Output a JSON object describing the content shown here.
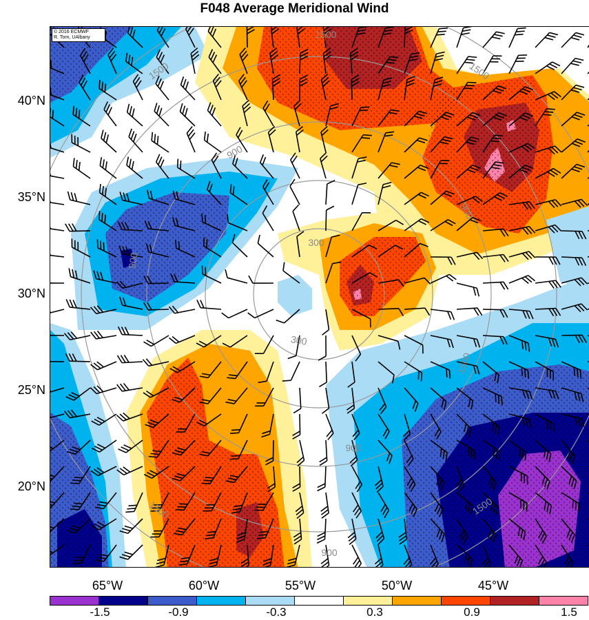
{
  "title": "F048 Average Meridional Wind",
  "credit": {
    "line1": "© 2016 ECMWF",
    "line2": "R. Torn, UAlbany"
  },
  "lat_ticks": [
    "40°N",
    "35°N",
    "30°N",
    "25°N",
    "20°N"
  ],
  "lon_ticks": [
    "65°W",
    "60°W",
    "55°W",
    "50°W",
    "45°W"
  ],
  "contour_labels": [
    "1500",
    "1500",
    "1500",
    "900",
    "900",
    "900",
    "300",
    "300",
    "1500",
    "1500",
    "1500",
    "900",
    "900"
  ],
  "colorbar": {
    "colors": [
      "#9b32cf",
      "#00008b",
      "#3d5ccc",
      "#00b2ee",
      "#aadcf6",
      "#ffffff",
      "#fff09a",
      "#ffa500",
      "#ff4500",
      "#b22222",
      "#ff82ab"
    ],
    "labels": [
      "-1.5",
      "-0.9",
      "-0.3",
      "0.3",
      "0.9",
      "1.5"
    ]
  },
  "palette": {
    "purple": "#9b32cf",
    "navy": "#00008b",
    "blue": "#3d5ccc",
    "cyan": "#00b2ee",
    "lightblue": "#aadcf6",
    "white": "#ffffff",
    "yellow": "#fff09a",
    "orange": "#ffa500",
    "red": "#ff4500",
    "darkred": "#b22222",
    "pink": "#ff82ab",
    "ring": "#999999",
    "barb": "#000000"
  }
}
